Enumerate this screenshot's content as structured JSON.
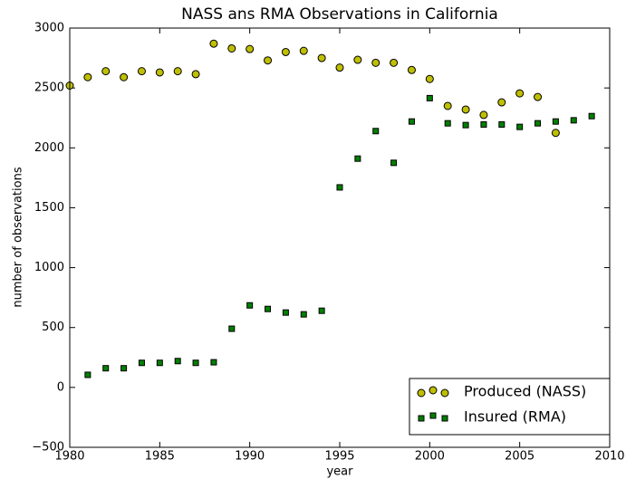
{
  "chart_data": {
    "type": "scatter",
    "title": "NASS ans RMA Observations in California",
    "x_label": "year",
    "y_label": "number of observations",
    "xlim": [
      1980,
      2010
    ],
    "xticks": [
      1980,
      1985,
      1990,
      1995,
      2000,
      2005,
      2010
    ],
    "ylim": [
      -500,
      3000
    ],
    "yticks": [
      {
        "value": -500,
        "label": "−500"
      },
      0,
      500,
      1000,
      1500,
      2000,
      2500,
      3000
    ],
    "legend": "lower right",
    "series": [
      {
        "name": "Produced (NASS)",
        "color": "#bfbf00",
        "marker": "circle",
        "x": [
          1980,
          1981,
          1982,
          1983,
          1984,
          1985,
          1986,
          1987,
          1988,
          1989,
          1990,
          1991,
          1992,
          1993,
          1994,
          1995,
          1996,
          1997,
          1998,
          1999,
          2000,
          2001,
          2002,
          2003,
          2004,
          2005,
          2006,
          2007
        ],
        "values": [
          2520,
          2590,
          2640,
          2590,
          2640,
          2630,
          2640,
          2615,
          2870,
          2830,
          2825,
          2730,
          2800,
          2810,
          2750,
          2670,
          2735,
          2710,
          2710,
          2650,
          2575,
          2350,
          2320,
          2275,
          2380,
          2455,
          2425,
          2125
        ]
      },
      {
        "name": "Insured (RMA)",
        "color": "#008000",
        "marker": "square",
        "x": [
          1981,
          1982,
          1983,
          1984,
          1985,
          1986,
          1987,
          1988,
          1989,
          1990,
          1991,
          1992,
          1993,
          1994,
          1995,
          1996,
          1997,
          1998,
          1999,
          2000,
          2001,
          2002,
          2003,
          2004,
          2005,
          2006,
          2007,
          2008,
          2009
        ],
        "values": [
          105,
          160,
          160,
          205,
          205,
          220,
          205,
          210,
          490,
          685,
          655,
          625,
          610,
          640,
          1670,
          1910,
          2140,
          1875,
          2220,
          2415,
          2205,
          2190,
          2195,
          2195,
          2175,
          2205,
          2220,
          2230,
          2265
        ]
      }
    ]
  }
}
